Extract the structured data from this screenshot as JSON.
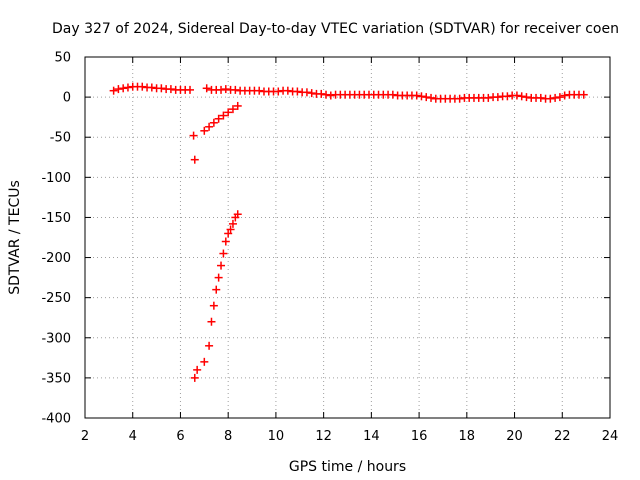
{
  "chart_data": {
    "type": "scatter",
    "title": "Day 327 of 2024, Sidereal Day-to-day VTEC variation (SDTVAR) for receiver coen",
    "xlabel": "GPS time / hours",
    "ylabel": "SDTVAR / TECUs",
    "xlim": [
      2,
      24
    ],
    "ylim": [
      -400,
      50
    ],
    "xticks": [
      2,
      4,
      6,
      8,
      10,
      12,
      14,
      16,
      18,
      20,
      22,
      24
    ],
    "yticks": [
      50,
      0,
      -50,
      -100,
      -150,
      -200,
      -250,
      -300,
      -350,
      -400
    ],
    "grid": true,
    "marker": "+",
    "color": "#ff0000",
    "series": [
      {
        "values": [
          [
            3.2,
            8
          ],
          [
            3.4,
            10
          ],
          [
            3.6,
            11
          ],
          [
            3.8,
            12
          ],
          [
            4.0,
            13
          ],
          [
            4.2,
            13
          ],
          [
            4.4,
            13
          ],
          [
            4.6,
            12
          ],
          [
            4.8,
            12
          ],
          [
            5.0,
            11
          ],
          [
            5.2,
            11
          ],
          [
            5.4,
            10
          ],
          [
            5.6,
            10
          ],
          [
            5.8,
            9
          ],
          [
            6.0,
            9
          ],
          [
            6.2,
            9
          ],
          [
            6.4,
            9
          ],
          [
            6.55,
            -48
          ],
          [
            6.6,
            -78
          ],
          [
            7.0,
            -42
          ],
          [
            7.2,
            -37
          ],
          [
            7.4,
            -32
          ],
          [
            7.6,
            -27
          ],
          [
            7.8,
            -23
          ],
          [
            8.0,
            -19
          ],
          [
            8.2,
            -15
          ],
          [
            8.4,
            -11
          ],
          [
            7.1,
            11
          ],
          [
            7.3,
            9
          ],
          [
            7.5,
            9
          ],
          [
            7.7,
            9
          ],
          [
            7.9,
            10
          ],
          [
            8.1,
            9
          ],
          [
            8.3,
            9
          ],
          [
            8.5,
            8
          ],
          [
            8.7,
            8
          ],
          [
            8.9,
            8
          ],
          [
            9.1,
            8
          ],
          [
            9.3,
            8
          ],
          [
            9.5,
            7
          ],
          [
            9.7,
            7
          ],
          [
            9.9,
            7
          ],
          [
            10.1,
            7
          ],
          [
            10.3,
            8
          ],
          [
            10.5,
            8
          ],
          [
            10.7,
            7
          ],
          [
            10.9,
            7
          ],
          [
            11.1,
            6
          ],
          [
            11.3,
            6
          ],
          [
            11.5,
            5
          ],
          [
            11.7,
            4
          ],
          [
            11.9,
            4
          ],
          [
            12.1,
            3
          ],
          [
            12.3,
            2
          ],
          [
            12.5,
            3
          ],
          [
            12.7,
            3
          ],
          [
            12.9,
            3
          ],
          [
            13.1,
            3
          ],
          [
            13.3,
            3
          ],
          [
            13.5,
            3
          ],
          [
            13.7,
            3
          ],
          [
            13.9,
            3
          ],
          [
            14.1,
            3
          ],
          [
            14.3,
            3
          ],
          [
            14.5,
            3
          ],
          [
            14.7,
            3
          ],
          [
            14.9,
            3
          ],
          [
            15.1,
            2
          ],
          [
            15.3,
            2
          ],
          [
            15.5,
            2
          ],
          [
            15.7,
            2
          ],
          [
            15.9,
            2
          ],
          [
            16.1,
            1
          ],
          [
            16.3,
            0
          ],
          [
            16.5,
            -1
          ],
          [
            16.7,
            -2
          ],
          [
            16.9,
            -2
          ],
          [
            17.1,
            -2
          ],
          [
            17.3,
            -2
          ],
          [
            17.5,
            -2
          ],
          [
            17.7,
            -2
          ],
          [
            17.9,
            -1
          ],
          [
            18.1,
            -1
          ],
          [
            18.3,
            -1
          ],
          [
            18.5,
            -1
          ],
          [
            18.7,
            -1
          ],
          [
            18.9,
            -1
          ],
          [
            19.1,
            0
          ],
          [
            19.3,
            0
          ],
          [
            19.5,
            1
          ],
          [
            19.7,
            1
          ],
          [
            19.9,
            2
          ],
          [
            20.1,
            2
          ],
          [
            20.3,
            1
          ],
          [
            20.5,
            0
          ],
          [
            20.7,
            -1
          ],
          [
            20.9,
            -1
          ],
          [
            21.1,
            -1
          ],
          [
            21.3,
            -2
          ],
          [
            21.5,
            -2
          ],
          [
            21.7,
            -1
          ],
          [
            21.9,
            0
          ],
          [
            22.1,
            2
          ],
          [
            22.3,
            3
          ],
          [
            22.5,
            3
          ],
          [
            22.7,
            3
          ],
          [
            22.9,
            3
          ],
          [
            6.6,
            -350
          ],
          [
            6.7,
            -340
          ],
          [
            7.0,
            -330
          ],
          [
            7.2,
            -310
          ],
          [
            7.3,
            -280
          ],
          [
            7.4,
            -260
          ],
          [
            7.5,
            -240
          ],
          [
            7.6,
            -225
          ],
          [
            7.7,
            -210
          ],
          [
            7.8,
            -195
          ],
          [
            7.9,
            -180
          ],
          [
            8.0,
            -170
          ],
          [
            8.1,
            -165
          ],
          [
            8.2,
            -158
          ],
          [
            8.3,
            -150
          ],
          [
            8.4,
            -146
          ]
        ]
      }
    ]
  }
}
